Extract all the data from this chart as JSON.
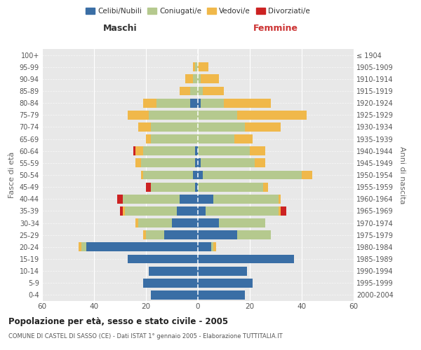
{
  "age_groups": [
    "0-4",
    "5-9",
    "10-14",
    "15-19",
    "20-24",
    "25-29",
    "30-34",
    "35-39",
    "40-44",
    "45-49",
    "50-54",
    "55-59",
    "60-64",
    "65-69",
    "70-74",
    "75-79",
    "80-84",
    "85-89",
    "90-94",
    "95-99",
    "100+"
  ],
  "birth_years": [
    "2000-2004",
    "1995-1999",
    "1990-1994",
    "1985-1989",
    "1980-1984",
    "1975-1979",
    "1970-1974",
    "1965-1969",
    "1960-1964",
    "1955-1959",
    "1950-1954",
    "1945-1949",
    "1940-1944",
    "1935-1939",
    "1930-1934",
    "1925-1929",
    "1920-1924",
    "1915-1919",
    "1910-1914",
    "1905-1909",
    "≤ 1904"
  ],
  "maschi": {
    "celibi": [
      18,
      21,
      19,
      27,
      43,
      13,
      10,
      8,
      7,
      1,
      2,
      1,
      1,
      0,
      0,
      0,
      3,
      0,
      0,
      0,
      0
    ],
    "coniugati": [
      0,
      0,
      0,
      0,
      2,
      7,
      13,
      20,
      22,
      17,
      19,
      21,
      20,
      18,
      18,
      19,
      13,
      3,
      2,
      1,
      0
    ],
    "vedovi": [
      0,
      0,
      0,
      0,
      1,
      1,
      1,
      1,
      0,
      0,
      1,
      2,
      3,
      2,
      5,
      8,
      5,
      4,
      3,
      1,
      0
    ],
    "divorziati": [
      0,
      0,
      0,
      0,
      0,
      0,
      0,
      1,
      2,
      2,
      0,
      0,
      1,
      0,
      0,
      0,
      0,
      0,
      0,
      0,
      0
    ]
  },
  "femmine": {
    "nubili": [
      18,
      21,
      19,
      37,
      5,
      15,
      8,
      3,
      6,
      0,
      2,
      1,
      0,
      0,
      0,
      0,
      1,
      0,
      0,
      0,
      0
    ],
    "coniugate": [
      0,
      0,
      0,
      0,
      1,
      13,
      18,
      28,
      25,
      25,
      38,
      21,
      20,
      14,
      18,
      15,
      9,
      2,
      1,
      0,
      0
    ],
    "vedove": [
      0,
      0,
      0,
      0,
      1,
      0,
      0,
      1,
      1,
      2,
      4,
      4,
      6,
      7,
      14,
      27,
      18,
      8,
      7,
      4,
      0
    ],
    "divorziate": [
      0,
      0,
      0,
      0,
      0,
      0,
      0,
      2,
      0,
      0,
      0,
      0,
      0,
      0,
      0,
      0,
      0,
      0,
      0,
      0,
      0
    ]
  },
  "colors": {
    "celibi": "#3a6ea5",
    "coniugati": "#b5c98e",
    "vedovi": "#f0b84a",
    "divorziati": "#cc2222"
  },
  "xlim": 60,
  "title": "Popolazione per età, sesso e stato civile - 2005",
  "subtitle": "COMUNE DI CASTEL DI SASSO (CE) - Dati ISTAT 1° gennaio 2005 - Elaborazione TUTTITALIA.IT",
  "ylabel_left": "Fasce di età",
  "ylabel_right": "Anni di nascita",
  "xlabel_left": "Maschi",
  "xlabel_right": "Femmine",
  "bg_color": "#e8e8e8",
  "legend_labels": [
    "Celibi/Nubili",
    "Coniugati/e",
    "Vedovi/e",
    "Divorziati/e"
  ]
}
